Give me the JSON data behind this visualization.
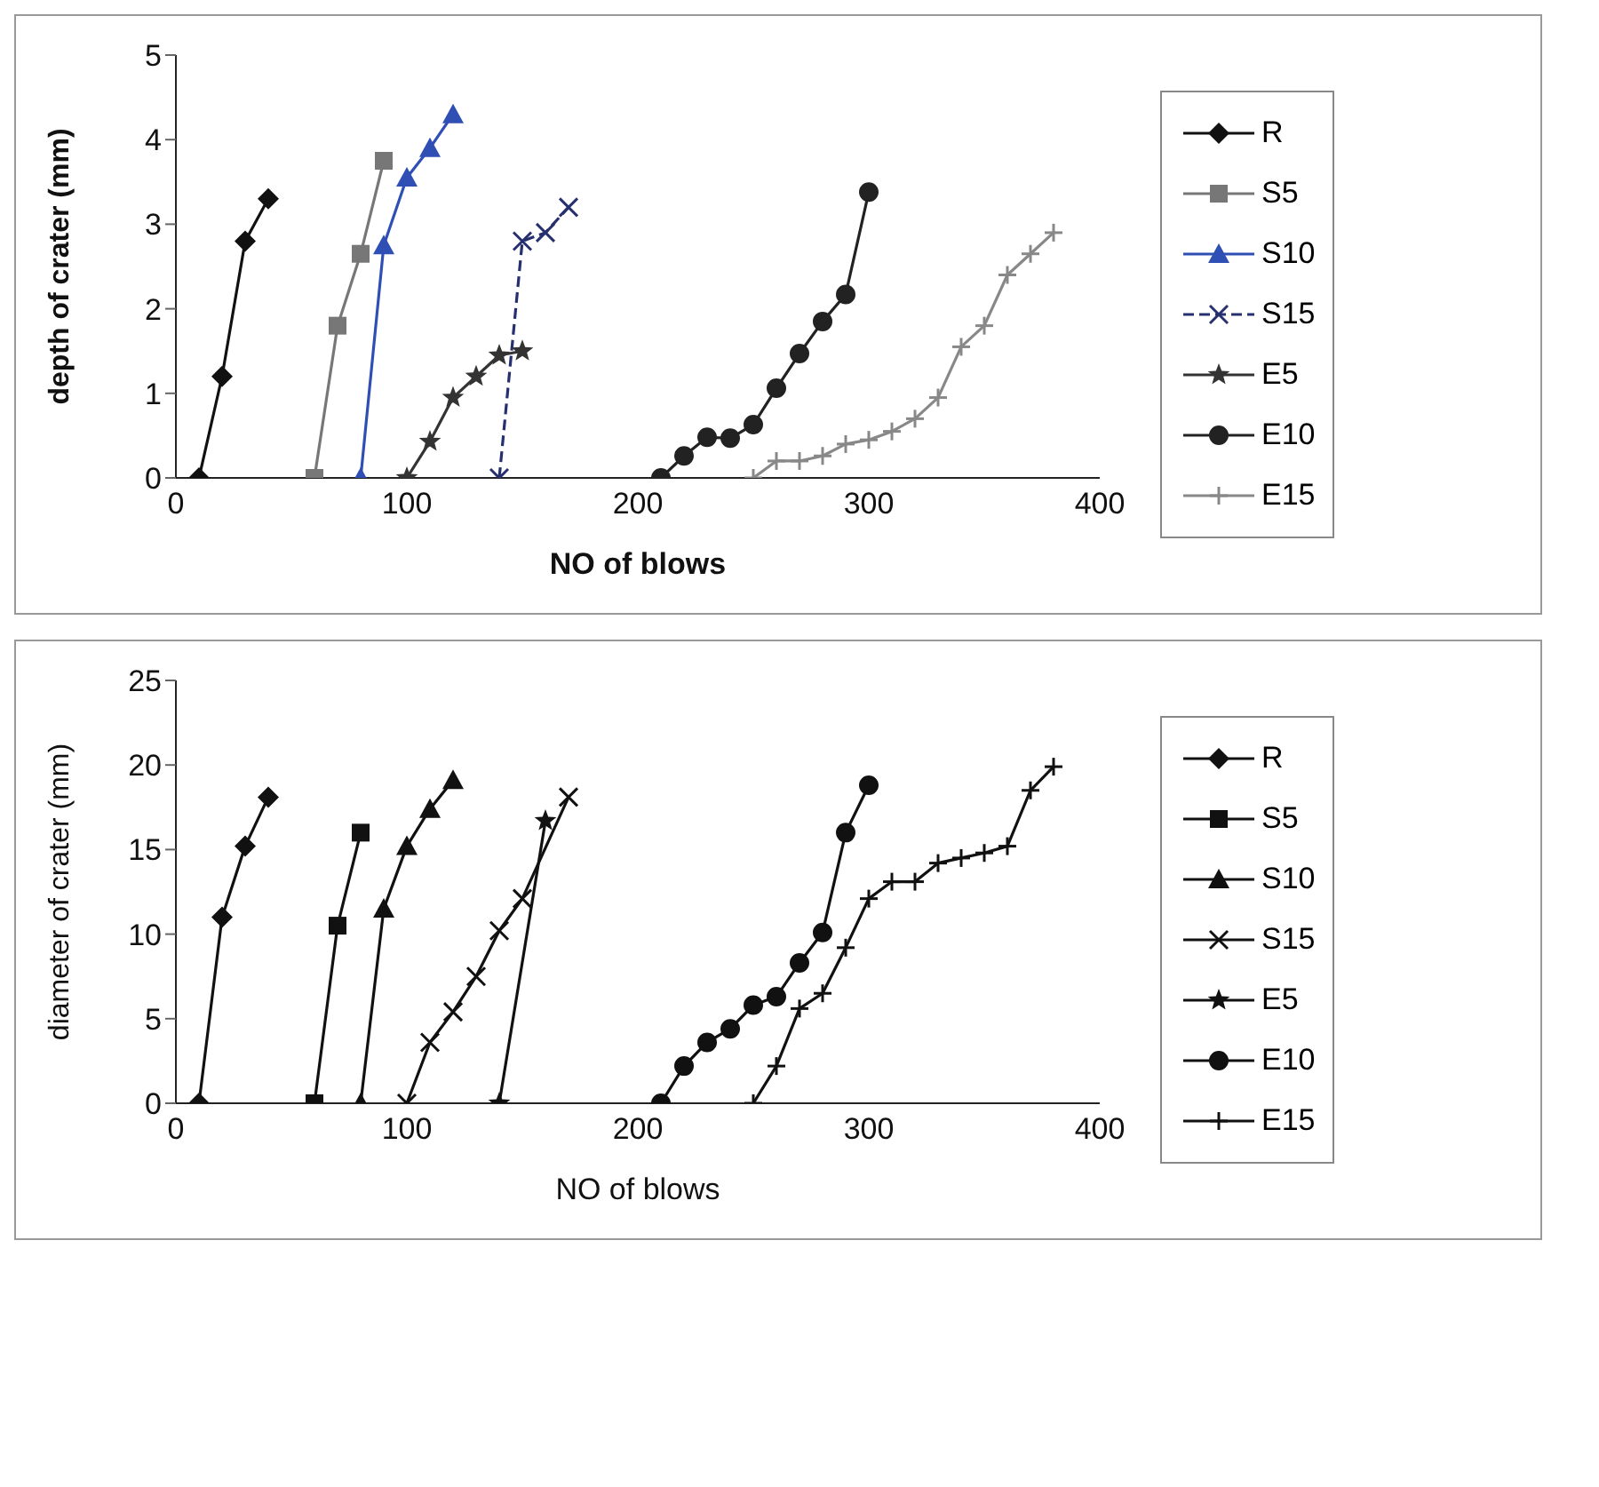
{
  "chart_data": [
    {
      "type": "line",
      "xlabel": "NO of blows",
      "ylabel": "depth of crater (mm)",
      "xlim": [
        0,
        400
      ],
      "xticks": [
        0,
        100,
        200,
        300,
        400
      ],
      "ylim": [
        0,
        5
      ],
      "yticks": [
        0,
        1,
        2,
        3,
        4,
        5
      ],
      "legend": "right",
      "series": [
        {
          "name": "R",
          "color": "#111111",
          "marker": "diamond",
          "line_style": "solid",
          "x": [
            10,
            20,
            30,
            40
          ],
          "values": [
            0,
            1.2,
            2.8,
            3.3
          ]
        },
        {
          "name": "S5",
          "color": "#777777",
          "marker": "square",
          "line_style": "solid",
          "x": [
            60,
            70,
            80,
            90
          ],
          "values": [
            0,
            1.8,
            2.65,
            3.75
          ]
        },
        {
          "name": "S10",
          "color": "#2f4fb5",
          "marker": "triangle",
          "line_style": "solid",
          "x": [
            80,
            90,
            100,
            110,
            120
          ],
          "values": [
            0,
            2.75,
            3.55,
            3.9,
            4.3
          ]
        },
        {
          "name": "S15",
          "color": "#27306e",
          "marker": "cross",
          "line_style": "dashed",
          "x": [
            140,
            150,
            160,
            170
          ],
          "values": [
            0,
            2.8,
            2.9,
            3.2
          ]
        },
        {
          "name": "E5",
          "color": "#333333",
          "marker": "star",
          "line_style": "solid",
          "x": [
            100,
            110,
            120,
            130,
            140,
            150
          ],
          "values": [
            0,
            0.43,
            0.95,
            1.2,
            1.45,
            1.5
          ]
        },
        {
          "name": "E10",
          "color": "#222222",
          "marker": "circle",
          "line_style": "solid",
          "x": [
            210,
            220,
            230,
            240,
            250,
            260,
            270,
            280,
            290,
            300
          ],
          "values": [
            0,
            0.26,
            0.48,
            0.47,
            0.63,
            1.06,
            1.47,
            1.85,
            2.17,
            3.38
          ]
        },
        {
          "name": "E15",
          "color": "#888888",
          "marker": "plus",
          "line_style": "solid",
          "x": [
            250,
            260,
            270,
            280,
            290,
            300,
            310,
            320,
            330,
            340,
            350,
            360,
            370,
            380
          ],
          "values": [
            0,
            0.2,
            0.2,
            0.26,
            0.4,
            0.45,
            0.55,
            0.7,
            0.95,
            1.55,
            1.8,
            2.4,
            2.65,
            2.9
          ]
        }
      ]
    },
    {
      "type": "line",
      "xlabel": "NO of blows",
      "ylabel": "diameter of crater (mm)",
      "xlim": [
        0,
        400
      ],
      "xticks": [
        0,
        100,
        200,
        300,
        400
      ],
      "ylim": [
        0,
        25
      ],
      "yticks": [
        0,
        5,
        10,
        15,
        20,
        25
      ],
      "legend": "right",
      "series": [
        {
          "name": "R",
          "color": "#111111",
          "marker": "diamond",
          "line_style": "solid",
          "x": [
            10,
            20,
            30,
            40
          ],
          "values": [
            0,
            11,
            15.2,
            18.1
          ]
        },
        {
          "name": "S5",
          "color": "#111111",
          "marker": "square",
          "line_style": "solid",
          "x": [
            60,
            70,
            80
          ],
          "values": [
            0,
            10.5,
            16
          ]
        },
        {
          "name": "S10",
          "color": "#111111",
          "marker": "triangle",
          "line_style": "solid",
          "x": [
            80,
            90,
            100,
            110,
            120
          ],
          "values": [
            0,
            11.5,
            15.2,
            17.4,
            19.1
          ]
        },
        {
          "name": "S15",
          "color": "#111111",
          "marker": "cross",
          "line_style": "solid",
          "x": [
            100,
            110,
            120,
            130,
            140,
            150,
            160,
            170
          ],
          "values": [
            0,
            3.6,
            5.4,
            7.5,
            10.2,
            12.1,
            null,
            18.1
          ]
        },
        {
          "name": "E5",
          "color": "#111111",
          "marker": "star",
          "line_style": "solid",
          "x": [
            140,
            150,
            160
          ],
          "values": [
            0,
            null,
            16.7
          ]
        },
        {
          "name": "E10",
          "color": "#111111",
          "marker": "circle",
          "line_style": "solid",
          "x": [
            210,
            220,
            230,
            240,
            250,
            260,
            270,
            280,
            290,
            300
          ],
          "values": [
            0,
            2.2,
            3.6,
            4.4,
            5.8,
            6.3,
            8.3,
            10.1,
            16,
            18.8
          ]
        },
        {
          "name": "E15",
          "color": "#111111",
          "marker": "plus",
          "line_style": "solid",
          "x": [
            250,
            260,
            270,
            280,
            290,
            300,
            310,
            320,
            330,
            340,
            350,
            360,
            370,
            380
          ],
          "values": [
            0,
            2.2,
            5.6,
            6.5,
            9.2,
            12.1,
            13.1,
            13.1,
            14.2,
            14.5,
            14.8,
            15.2,
            18.5,
            19.9
          ]
        }
      ]
    }
  ]
}
